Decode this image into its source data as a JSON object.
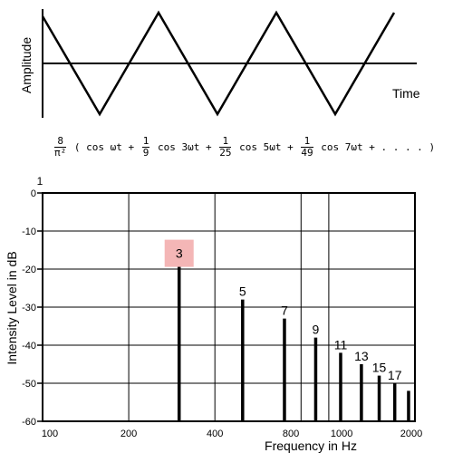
{
  "waveform": {
    "ylabel": "Amplitude",
    "xlabel": "Time"
  },
  "formula": {
    "prefix": {
      "num": "8",
      "den": "π²"
    },
    "open": "(",
    "terms": [
      {
        "coef_num": "",
        "coef_den": "",
        "text": "cos ωt"
      },
      {
        "coef_num": "1",
        "coef_den": "9",
        "text": "cos 3ωt"
      },
      {
        "coef_num": "1",
        "coef_den": "25",
        "text": "cos 5ωt"
      },
      {
        "coef_num": "1",
        "coef_den": "49",
        "text": "cos 7ωt"
      }
    ],
    "plus": "+",
    "tail": "+ . . . .",
    "close": ")"
  },
  "chart_data": {
    "type": "bar",
    "xlabel": "Frequency in Hz",
    "ylabel": "Intensity Level in dB",
    "xscale": "log",
    "xlim": [
      100,
      2000
    ],
    "ylim": [
      -60,
      0
    ],
    "grid": true,
    "x_ticks": [
      "100",
      "200",
      "400",
      "800",
      "1000",
      "2000"
    ],
    "y_ticks": [
      "0",
      "-10",
      "-20",
      "-30",
      "-40",
      "-50",
      "-60"
    ],
    "top_label": "1",
    "harmonics": [
      {
        "label": "3",
        "x": 300,
        "y": -18,
        "highlight": true
      },
      {
        "label": "5",
        "x": 500,
        "y": -28
      },
      {
        "label": "7",
        "x": 700,
        "y": -33
      },
      {
        "label": "9",
        "x": 900,
        "y": -38
      },
      {
        "label": "11",
        "x": 1100,
        "y": -42
      },
      {
        "label": "13",
        "x": 1300,
        "y": -45
      },
      {
        "label": "15",
        "x": 1500,
        "y": -48
      },
      {
        "label": "17",
        "x": 1700,
        "y": -50
      },
      {
        "label": "",
        "x": 1900,
        "y": -52
      }
    ],
    "highlight_color": "#f4b6b6",
    "bar_color": "#000000"
  }
}
